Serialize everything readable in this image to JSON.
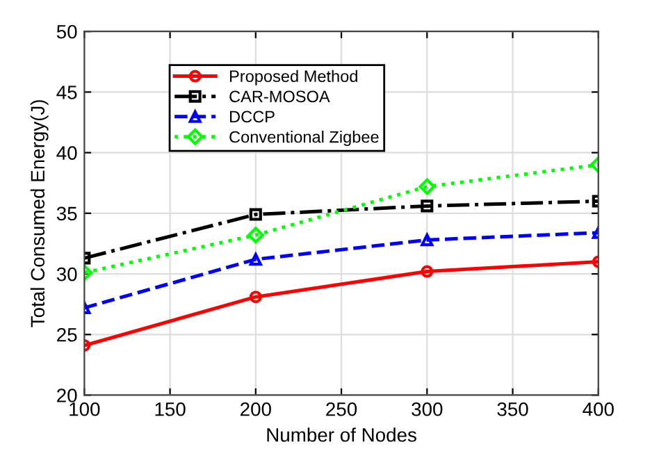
{
  "chart_data": {
    "type": "line",
    "xlabel": "Number of Nodes",
    "ylabel": "Total Consumed Energy(J)",
    "x": [
      100,
      200,
      300,
      400
    ],
    "series": [
      {
        "name": "Proposed Method",
        "color": "#ff0000",
        "values": [
          24.1,
          28.1,
          30.2,
          31.0
        ],
        "marker": "circle",
        "line_style": "solid"
      },
      {
        "name": "CAR-MOSOA",
        "color": "#000000",
        "values": [
          31.3,
          34.9,
          35.6,
          36.0
        ],
        "marker": "square",
        "line_style": "dashdot"
      },
      {
        "name": "DCCP",
        "color": "#0000ff",
        "values": [
          27.2,
          31.2,
          32.8,
          33.4
        ],
        "marker": "triangle",
        "line_style": "dashed"
      },
      {
        "name": "Conventional Zigbee",
        "color": "#00ff00",
        "values": [
          30.1,
          33.2,
          37.2,
          39.0
        ],
        "marker": "diamond",
        "line_style": "dotted"
      }
    ],
    "xlim": [
      100,
      400
    ],
    "xticks": [
      100,
      150,
      200,
      250,
      300,
      350,
      400
    ],
    "ylim": [
      20,
      50
    ],
    "yticks": [
      20,
      25,
      30,
      35,
      40,
      45,
      50
    ],
    "grid": true,
    "legend": "top left"
  }
}
